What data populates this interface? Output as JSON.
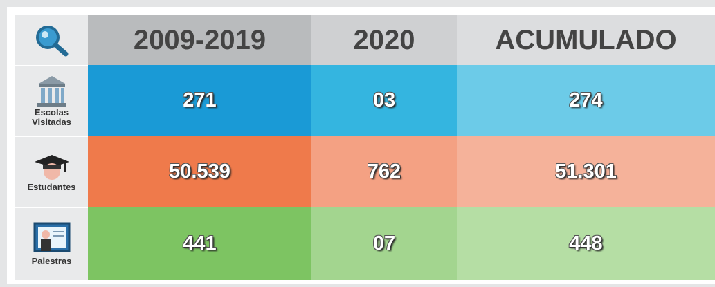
{
  "table": {
    "columns": [
      "2009-2019",
      "2020",
      "ACUMULADO"
    ],
    "rows": [
      {
        "label": [
          "Escolas",
          "Visitadas"
        ],
        "values": [
          "271",
          "03",
          "274"
        ]
      },
      {
        "label": [
          "Estudantes"
        ],
        "values": [
          "50.539",
          "762",
          "51.301"
        ]
      },
      {
        "label": [
          "Palestras"
        ],
        "values": [
          "441",
          "07",
          "448"
        ]
      }
    ]
  }
}
